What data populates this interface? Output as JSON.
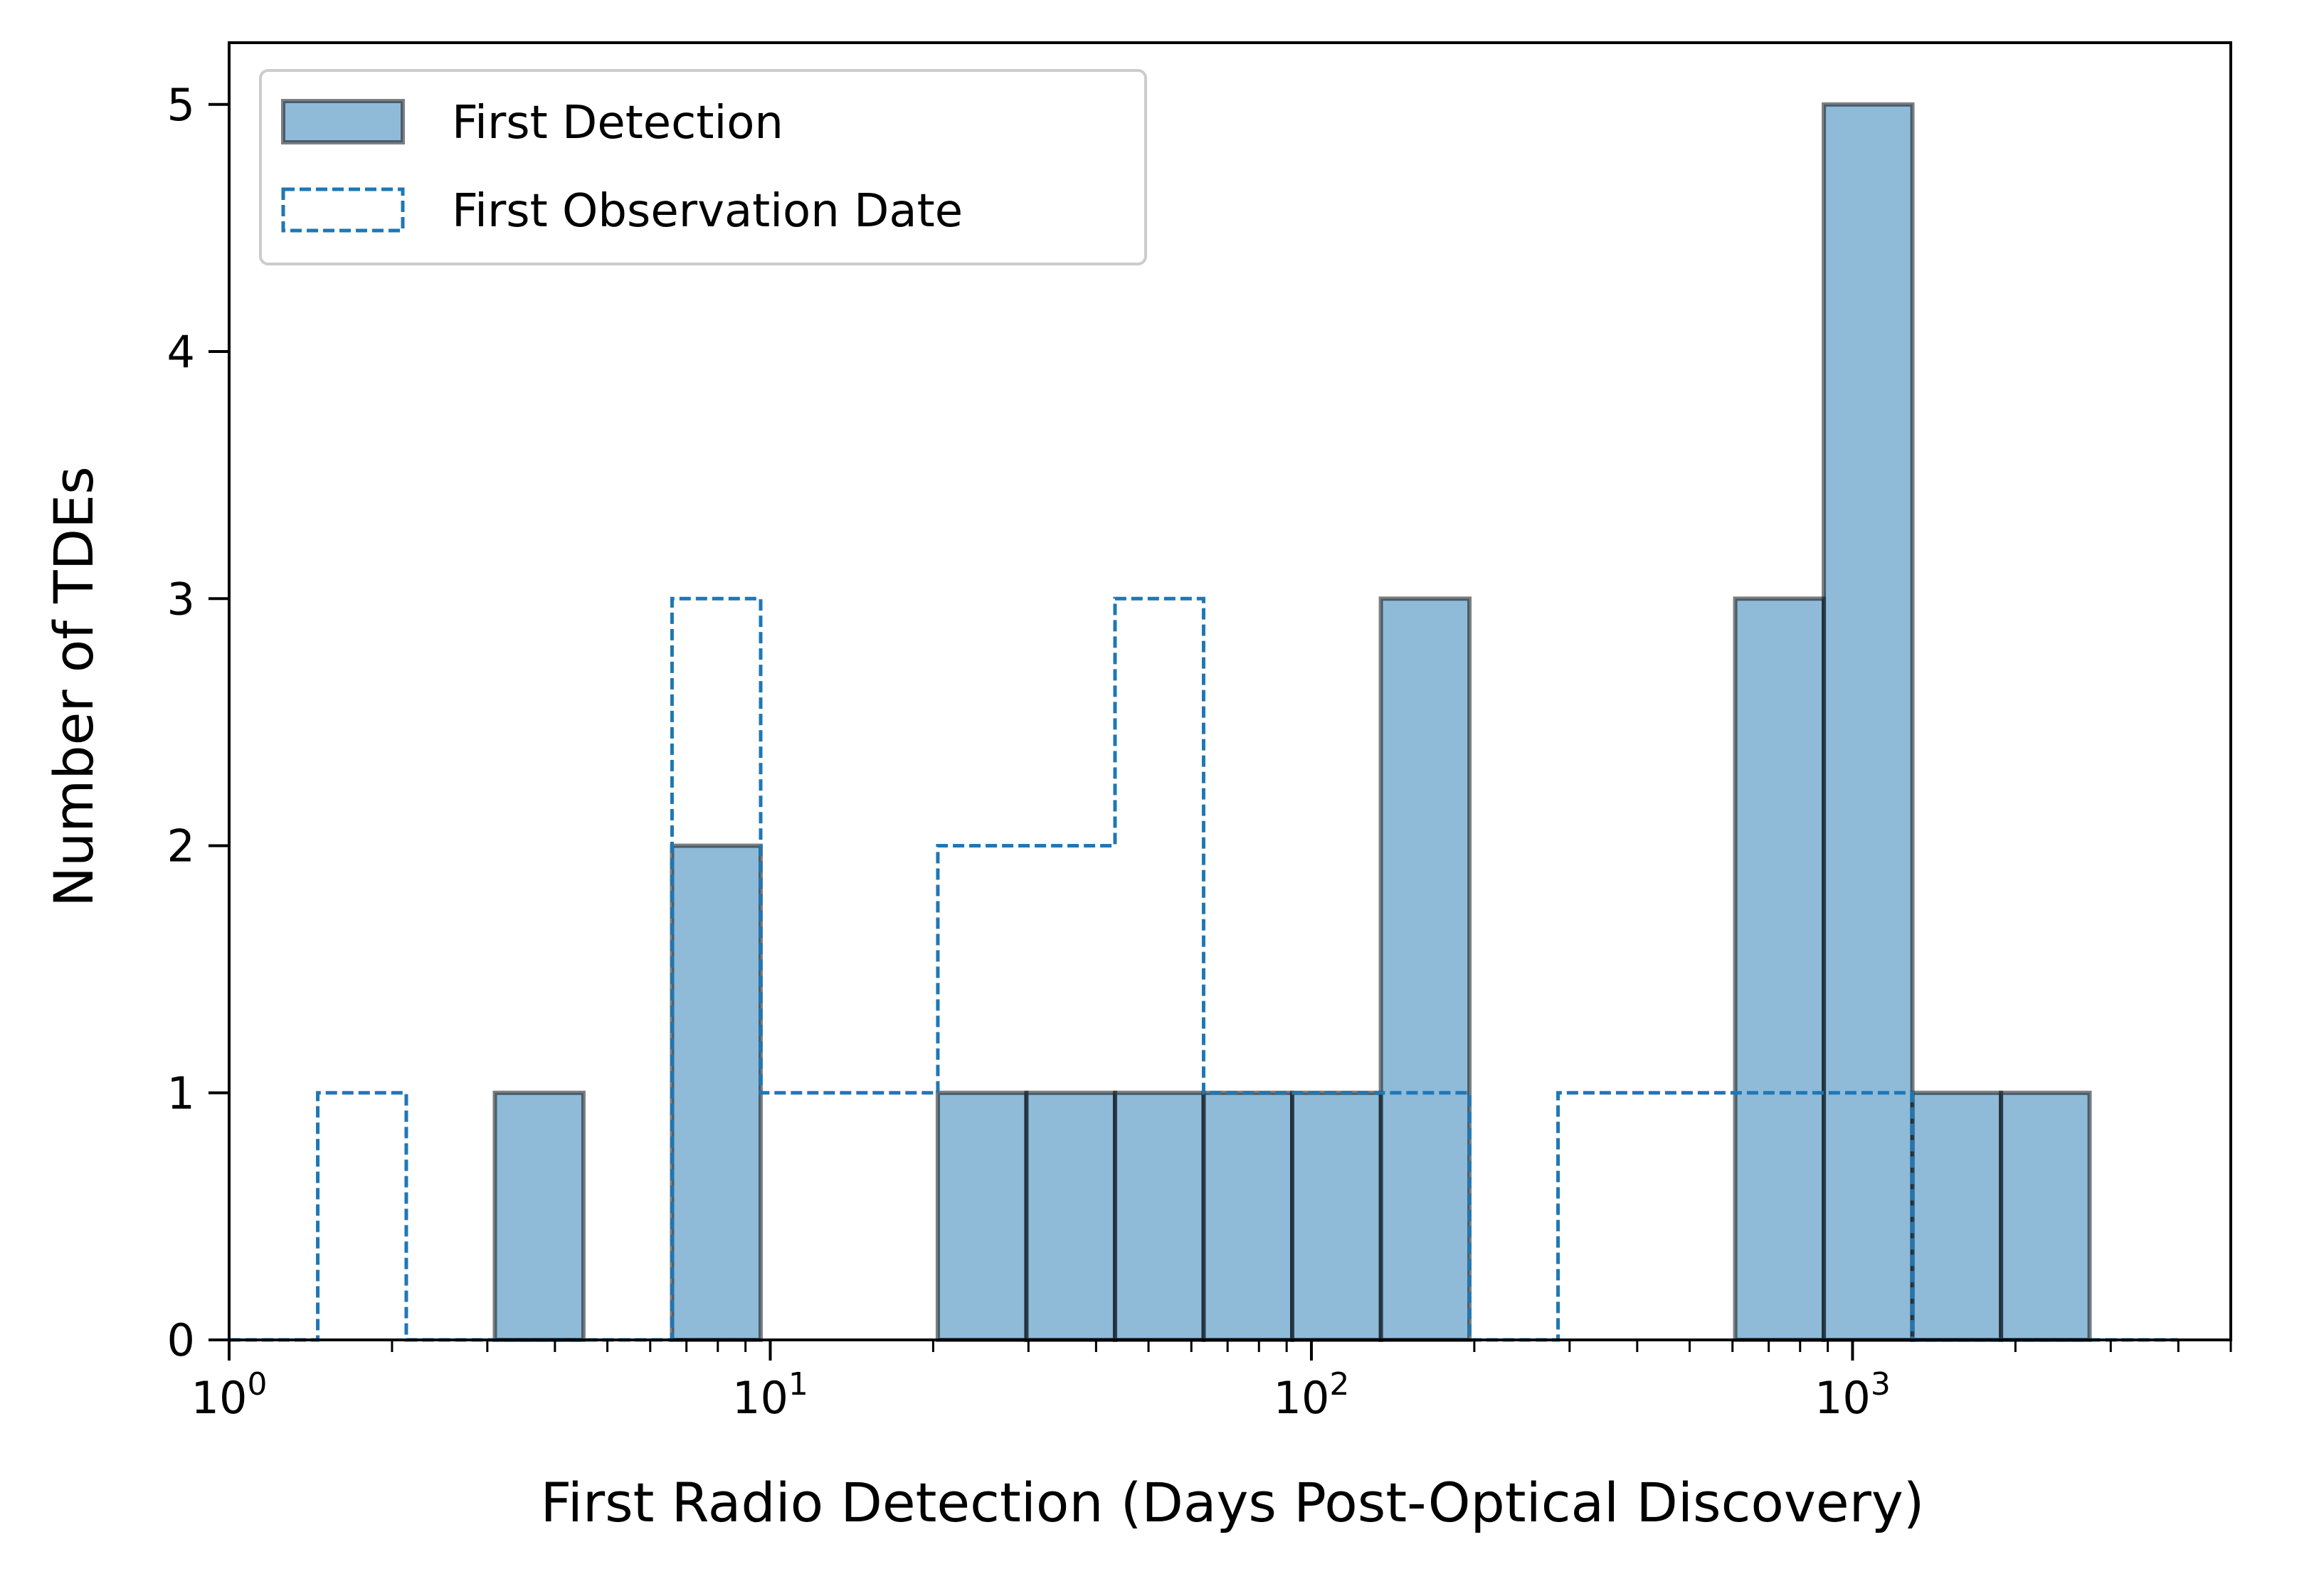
{
  "chart_data": {
    "type": "bar",
    "x_scale": "log",
    "xlim": [
      1,
      5000
    ],
    "ylim": [
      0,
      5.25
    ],
    "xlabel": "First Radio Detection (Days Post-Optical Discovery)",
    "ylabel": "Number of TDEs",
    "x_ticks": [
      {
        "base": "10",
        "exp": "0",
        "value": 1
      },
      {
        "base": "10",
        "exp": "1",
        "value": 10
      },
      {
        "base": "10",
        "exp": "2",
        "value": 100
      },
      {
        "base": "10",
        "exp": "3",
        "value": 1000
      }
    ],
    "y_ticks": [
      "0",
      "1",
      "2",
      "3",
      "4",
      "5"
    ],
    "bin_edges": [
      1.0,
      1.458,
      2.125,
      3.098,
      4.516,
      6.584,
      9.6,
      13.99,
      20.4,
      29.74,
      43.36,
      63.21,
      92.16,
      134.4,
      195.9,
      285.6,
      416.4,
      607.0,
      885.0,
      1290.0,
      1881.0,
      2742.0,
      3998.0
    ],
    "series": [
      {
        "name": "First Detection",
        "style": "filled",
        "color": "#1f77b4",
        "counts": [
          0,
          0,
          0,
          1,
          0,
          2,
          0,
          0,
          1,
          1,
          1,
          1,
          1,
          3,
          0,
          0,
          0,
          3,
          5,
          1,
          1,
          0
        ]
      },
      {
        "name": "First Observation Date",
        "style": "dashed-step",
        "color": "#1f77b4",
        "counts": [
          0,
          1,
          0,
          0,
          0,
          3,
          1,
          1,
          2,
          2,
          3,
          1,
          1,
          1,
          0,
          1,
          1,
          1,
          1,
          0,
          0,
          0
        ]
      }
    ],
    "legend_position": "top-left",
    "grid": false
  }
}
